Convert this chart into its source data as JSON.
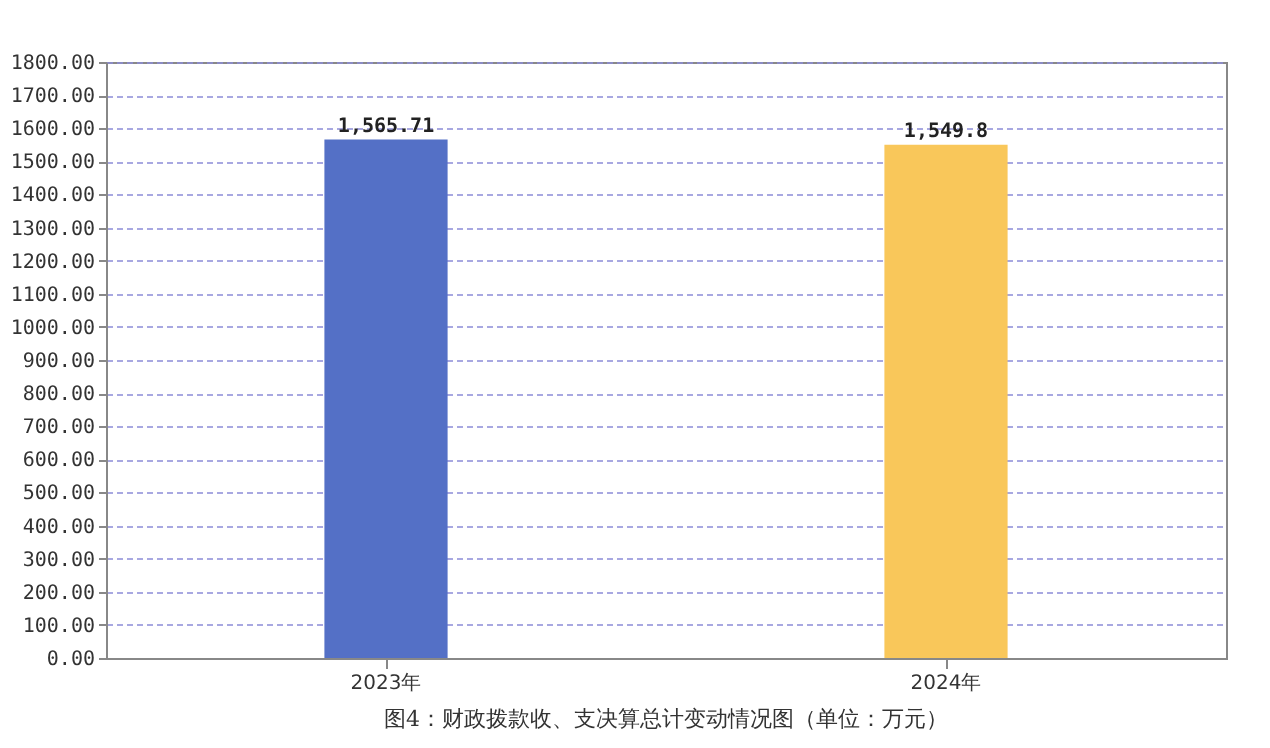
{
  "chart_data": {
    "type": "bar",
    "title": "图4：财政拨款收、支决算总计变动情况图（单位：万元）",
    "categories": [
      "2023年",
      "2024年"
    ],
    "values": [
      1565.71,
      1549.8
    ],
    "colors": [
      "#5470c6",
      "#f9c75a"
    ],
    "value_labels": [
      "1,565.71",
      "1,549.8"
    ],
    "ylim": [
      0,
      1800
    ],
    "yticks": [
      {
        "value": 0,
        "label": "0.00"
      },
      {
        "value": 100,
        "label": "100.00"
      },
      {
        "value": 200,
        "label": "200.00"
      },
      {
        "value": 300,
        "label": "300.00"
      },
      {
        "value": 400,
        "label": "400.00"
      },
      {
        "value": 500,
        "label": "500.00"
      },
      {
        "value": 600,
        "label": "600.00"
      },
      {
        "value": 700,
        "label": "700.00"
      },
      {
        "value": 800,
        "label": "800.00"
      },
      {
        "value": 900,
        "label": "900.00"
      },
      {
        "value": 1000,
        "label": "1000.00"
      },
      {
        "value": 1100,
        "label": "1100.00"
      },
      {
        "value": 1200,
        "label": "1200.00"
      },
      {
        "value": 1300,
        "label": "1300.00"
      },
      {
        "value": 1400,
        "label": "1400.00"
      },
      {
        "value": 1500,
        "label": "1500.00"
      },
      {
        "value": 1600,
        "label": "1600.00"
      },
      {
        "value": 1700,
        "label": "1700.00"
      },
      {
        "value": 1800,
        "label": "1800.00"
      }
    ],
    "grid": "y"
  }
}
